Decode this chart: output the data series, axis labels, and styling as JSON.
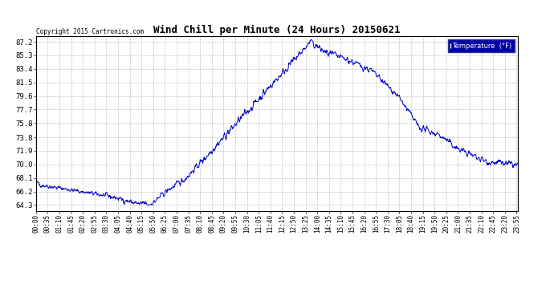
{
  "title": "Wind Chill per Minute (24 Hours) 20150621",
  "copyright": "Copyright 2015 Cartronics.com",
  "legend_label": "Temperature  (°F)",
  "line_color": "#0000CC",
  "background_color": "#ffffff",
  "plot_bg_color": "#ffffff",
  "yticks": [
    64.3,
    66.2,
    68.1,
    70.0,
    71.9,
    73.8,
    75.8,
    77.7,
    79.6,
    81.5,
    83.4,
    85.3,
    87.2
  ],
  "ylim": [
    63.5,
    88.0
  ],
  "grid_color": "#bbbbbb",
  "xtick_labels": [
    "00:00",
    "00:35",
    "01:10",
    "01:45",
    "02:20",
    "02:55",
    "03:30",
    "04:05",
    "04:40",
    "05:15",
    "05:50",
    "06:25",
    "07:00",
    "07:35",
    "08:10",
    "08:45",
    "09:20",
    "09:55",
    "10:30",
    "11:05",
    "11:40",
    "12:15",
    "12:50",
    "13:25",
    "14:00",
    "14:35",
    "15:10",
    "15:45",
    "16:20",
    "16:55",
    "17:30",
    "18:05",
    "18:40",
    "19:15",
    "19:50",
    "20:25",
    "21:00",
    "21:35",
    "22:10",
    "22:45",
    "23:20",
    "23:55"
  ],
  "n_minutes": 1440
}
